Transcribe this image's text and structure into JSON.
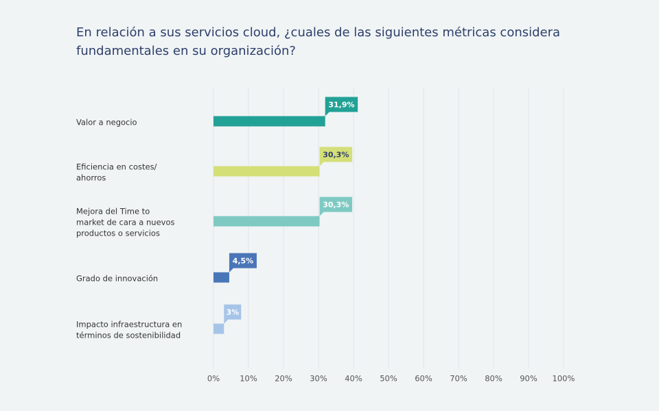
{
  "chart_data": {
    "type": "hbar",
    "title": [
      "En relación a sus servicios cloud, ¿cuales de las siguientes métricas considera",
      "fundamentales en su organización?"
    ],
    "categories": [
      [
        "Valor a negocio"
      ],
      [
        "Eficiencia en costes/",
        "ahorros"
      ],
      [
        "Mejora del Time to",
        "market de cara a nuevos",
        "productos o servicios"
      ],
      [
        "Grado de innovación"
      ],
      [
        "Impacto infraestructura en",
        "términos de sostenibilidad"
      ]
    ],
    "values": [
      31.9,
      30.3,
      30.3,
      4.5,
      3
    ],
    "value_labels": [
      "31,9%",
      "30,3%",
      "30,3%",
      "4,5%",
      "3%"
    ],
    "colors": [
      "#22a196",
      "#d4df78",
      "#7ecac3",
      "#4a76b8",
      "#a6c4e8"
    ],
    "label_text_colors": [
      "#ffffff",
      "#2d3e6a",
      "#ffffff",
      "#ffffff",
      "#ffffff"
    ],
    "xlim": [
      0,
      100
    ],
    "xticks": [
      {
        "value": 0,
        "label": "0%"
      },
      {
        "value": 10,
        "label": "10%"
      },
      {
        "value": 20,
        "label": "20%"
      },
      {
        "value": 30,
        "label": "30%"
      },
      {
        "value": 40,
        "label": "40%"
      },
      {
        "value": 50,
        "label": "50%"
      },
      {
        "value": 60,
        "label": "60%"
      },
      {
        "value": 70,
        "label": "70%"
      },
      {
        "value": 80,
        "label": "80%"
      },
      {
        "value": 90,
        "label": "90%"
      },
      {
        "value": 100,
        "label": "100%"
      }
    ],
    "grid": true
  }
}
